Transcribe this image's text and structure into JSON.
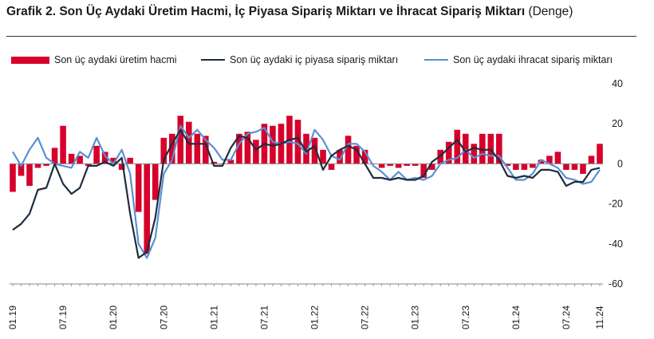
{
  "title": {
    "bold": "Grafik 2. Son Üç Aydaki Üretim Hacmi, İç Piyasa Sipariş Miktarı ve İhracat Sipariş Miktarı",
    "unit": "(Denge)"
  },
  "colors": {
    "production": "#d6002a",
    "domestic": "#1f2d3d",
    "export": "#5b8fd4",
    "axis": "#888888"
  },
  "chart_data": {
    "type": "bar",
    "ylim": [
      -60,
      40
    ],
    "yticks": [
      "40",
      "20",
      "0",
      "-20",
      "-40",
      "-60"
    ],
    "grid": false,
    "legend_position": "top",
    "x_tick_labels": [
      "01.19",
      "07.19",
      "01.20",
      "07.20",
      "01.21",
      "07.21",
      "01.22",
      "07.22",
      "01.23",
      "07.23",
      "01.24",
      "07.24",
      "11.24"
    ],
    "x_tick_index": [
      0,
      6,
      12,
      18,
      24,
      30,
      36,
      42,
      48,
      54,
      60,
      66,
      70
    ],
    "x": [
      "01.19",
      "02.19",
      "03.19",
      "04.19",
      "05.19",
      "06.19",
      "07.19",
      "08.19",
      "09.19",
      "10.19",
      "11.19",
      "12.19",
      "01.20",
      "02.20",
      "03.20",
      "04.20",
      "05.20",
      "06.20",
      "07.20",
      "08.20",
      "09.20",
      "10.20",
      "11.20",
      "12.20",
      "01.21",
      "02.21",
      "03.21",
      "04.21",
      "05.21",
      "06.21",
      "07.21",
      "08.21",
      "09.21",
      "10.21",
      "11.21",
      "12.21",
      "01.22",
      "02.22",
      "03.22",
      "04.22",
      "05.22",
      "06.22",
      "07.22",
      "08.22",
      "09.22",
      "10.22",
      "11.22",
      "12.22",
      "01.23",
      "02.23",
      "03.23",
      "04.23",
      "05.23",
      "06.23",
      "07.23",
      "08.23",
      "09.23",
      "10.23",
      "11.23",
      "12.23",
      "01.24",
      "02.24",
      "03.24",
      "04.24",
      "05.24",
      "06.24",
      "07.24",
      "08.24",
      "09.24",
      "10.24",
      "11.24"
    ],
    "series": [
      {
        "name": "Son üç aydaki üretim hacmi",
        "kind": "bar",
        "values": [
          -14,
          -6,
          -11,
          -2,
          -1,
          8,
          19,
          5,
          4,
          -1,
          9,
          6,
          3,
          -3,
          3,
          -24,
          -45,
          -18,
          13,
          15,
          24,
          21,
          15,
          14,
          1,
          0,
          2,
          15,
          16,
          12,
          20,
          19,
          20,
          24,
          22,
          15,
          13,
          7,
          -3,
          7,
          14,
          9,
          7,
          0,
          -2,
          -1,
          -2,
          -1,
          -1,
          -7,
          -3,
          7,
          11,
          17,
          15,
          10,
          15,
          15,
          15,
          -1,
          -3,
          -3,
          -2,
          2,
          4,
          6,
          -3,
          -3,
          -5,
          4,
          10
        ]
      },
      {
        "name": "Son üç aydaki iç piyasa sipariş miktarı",
        "kind": "line",
        "values": [
          -33,
          -30,
          -25,
          -13,
          -12,
          0,
          -10,
          -15,
          -12,
          -1,
          -1,
          1,
          -1,
          3,
          -25,
          -47,
          -44,
          -27,
          2,
          10,
          17,
          10,
          10,
          10,
          -1,
          -1,
          8,
          14,
          13,
          7,
          10,
          9,
          10,
          12,
          13,
          6,
          9,
          -3,
          4,
          7,
          9,
          7,
          0,
          -7,
          -7,
          -8,
          -7,
          -8,
          -8,
          -6,
          1,
          4,
          8,
          12,
          6,
          8,
          7,
          7,
          2,
          -6,
          -7,
          -6,
          -7,
          -3,
          -3,
          -4,
          -11,
          -9,
          -9,
          -3,
          -2
        ]
      },
      {
        "name": "Son üç aydaki ihracat sipariş miktarı",
        "kind": "line",
        "values": [
          6,
          -1,
          7,
          13,
          3,
          0,
          -1,
          -2,
          6,
          3,
          13,
          4,
          0,
          7,
          -5,
          -40,
          -47,
          -37,
          -5,
          2,
          19,
          13,
          17,
          12,
          8,
          2,
          2,
          10,
          15,
          16,
          18,
          11,
          10,
          11,
          10,
          5,
          17,
          12,
          4,
          2,
          10,
          10,
          6,
          -1,
          -4,
          -8,
          -4,
          -8,
          -7,
          -8,
          -6,
          0,
          2,
          3,
          7,
          3,
          5,
          4,
          4,
          -2,
          -8,
          -8,
          -5,
          2,
          0,
          -2,
          -7,
          -8,
          -10,
          -9,
          -3
        ]
      }
    ]
  }
}
